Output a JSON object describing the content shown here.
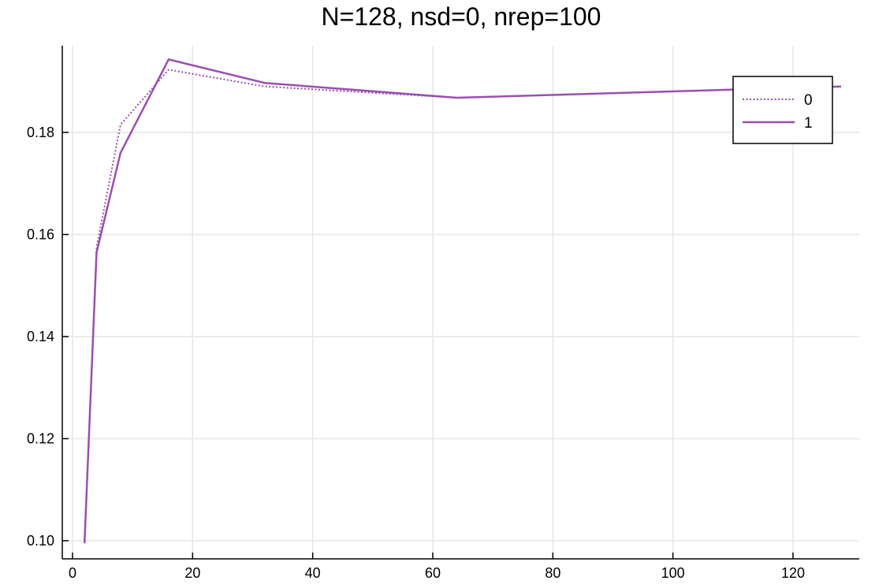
{
  "chart_data": {
    "type": "line",
    "title": "N=128, nsd=0, nrep=100",
    "xlabel": "",
    "ylabel": "",
    "xlim": [
      -1,
      129
    ],
    "ylim": [
      0.0985,
      0.1968
    ],
    "xticks": [
      0,
      20,
      40,
      60,
      80,
      100,
      120
    ],
    "xtick_labels": [
      "0",
      "20",
      "40",
      "60",
      "80",
      "100",
      "120"
    ],
    "yticks": [
      0.1,
      0.12,
      0.14,
      0.16,
      0.18
    ],
    "ytick_labels": [
      "0.10",
      "0.12",
      "0.14",
      "0.16",
      "0.18"
    ],
    "grid": true,
    "legend_position": "top-right",
    "series": [
      {
        "name": "0",
        "style": "dotted",
        "color": "#9b4fb0",
        "x": [
          2,
          4,
          8,
          16,
          32,
          64,
          128
        ],
        "y": [
          0.0995,
          0.1575,
          0.1815,
          0.1923,
          0.189,
          0.1868,
          0.189
        ]
      },
      {
        "name": "1",
        "style": "solid",
        "color": "#9b4fb0",
        "x": [
          2,
          4,
          8,
          16,
          32,
          64,
          128
        ],
        "y": [
          0.0995,
          0.1565,
          0.176,
          0.1943,
          0.1897,
          0.1868,
          0.189
        ]
      }
    ]
  }
}
